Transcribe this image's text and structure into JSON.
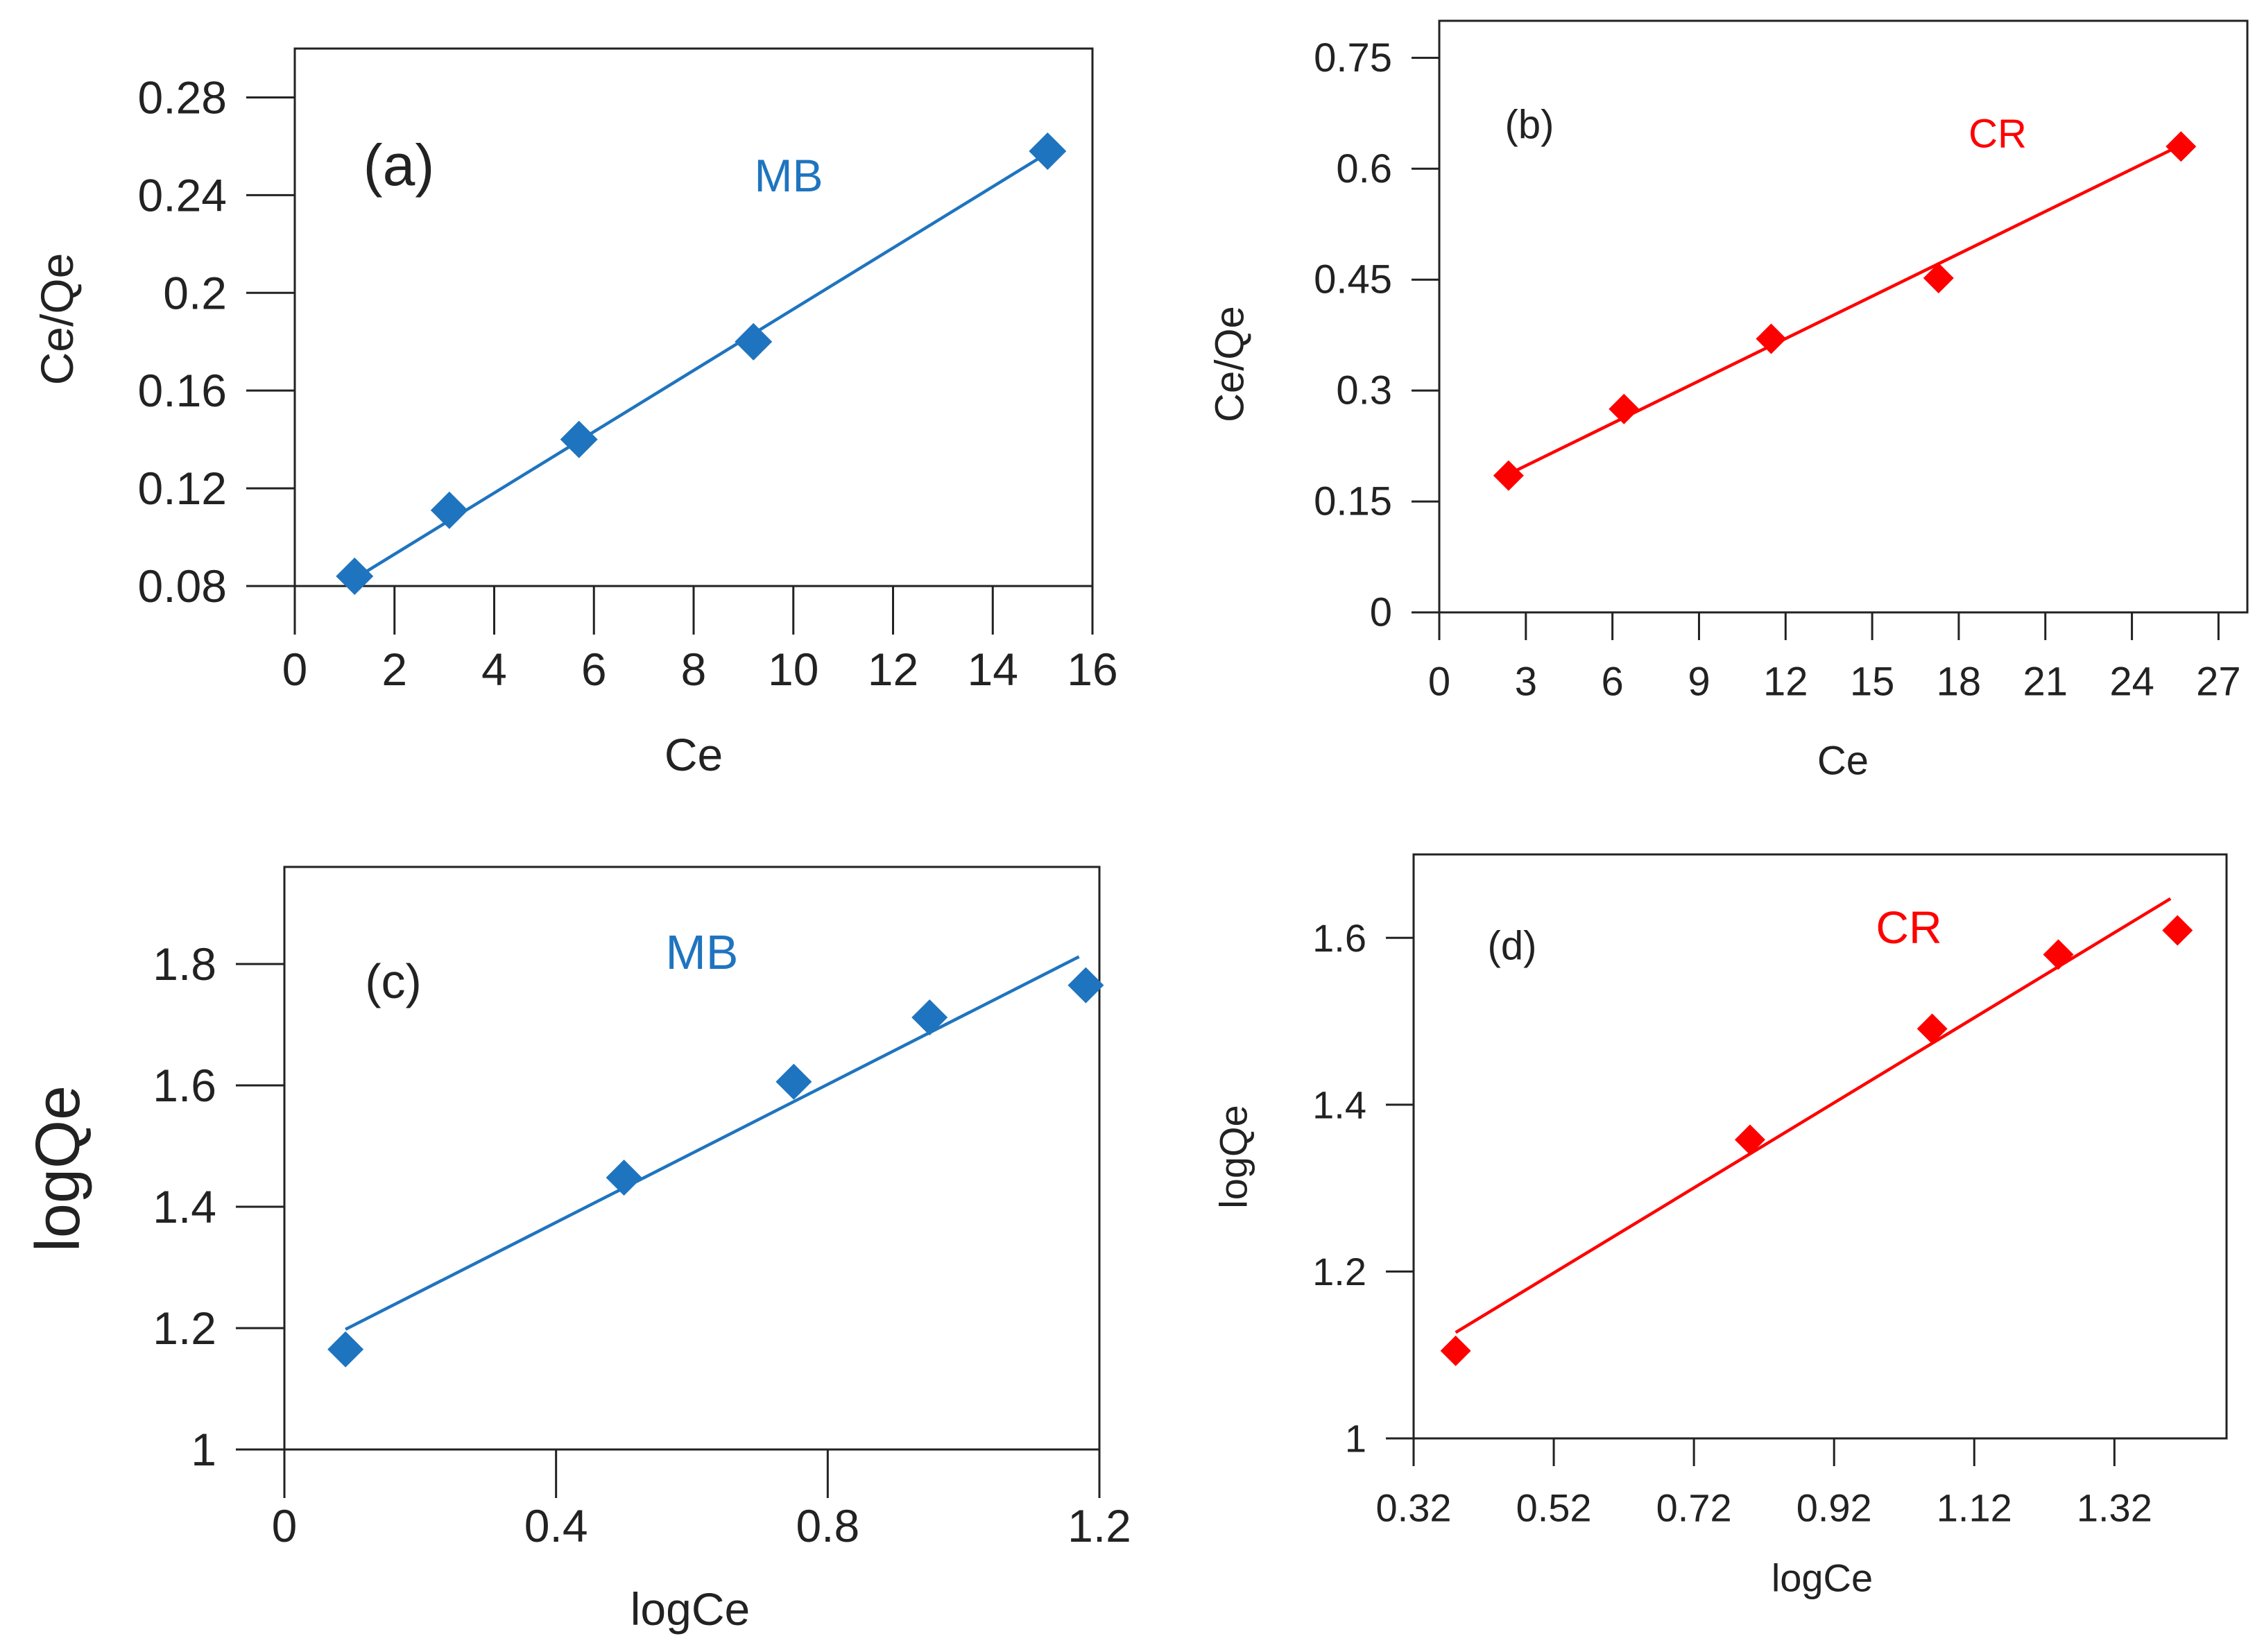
{
  "colors": {
    "mb": "#1f74bf",
    "cr": "#ff0000",
    "axis": "#222222"
  },
  "chart_data": [
    {
      "type": "scatter",
      "panel_label": "(a)",
      "series_label": "MB",
      "color": "#1f74bf",
      "marker": "diamond",
      "xlabel": "Ce",
      "ylabel": "Ce/Qe",
      "xlim": [
        0,
        16
      ],
      "ylim": [
        0.08,
        0.3
      ],
      "xticks": [
        "0",
        "2",
        "4",
        "6",
        "8",
        "10",
        "12",
        "14",
        "16"
      ],
      "yticks": [
        "0.08",
        "0.12",
        "0.16",
        "0.2",
        "0.24",
        "0.28"
      ],
      "x": [
        1.2,
        3.1,
        5.7,
        9.2,
        15.1
      ],
      "y": [
        0.084,
        0.111,
        0.14,
        0.18,
        0.258
      ],
      "trendline": {
        "x": [
          1.2,
          15.0
        ],
        "y": [
          0.083,
          0.256
        ]
      }
    },
    {
      "type": "scatter",
      "panel_label": "(b)",
      "series_label": "CR",
      "color": "#ff0000",
      "marker": "diamond",
      "xlabel": "Ce",
      "ylabel": "Ce/Qe",
      "xlim": [
        0,
        28
      ],
      "ylim": [
        0,
        0.8
      ],
      "xticks": [
        "0",
        "3",
        "6",
        "9",
        "12",
        "15",
        "18",
        "21",
        "24",
        "27"
      ],
      "yticks": [
        "0",
        "0.15",
        "0.3",
        "0.45",
        "0.6",
        "0.75"
      ],
      "x": [
        2.4,
        6.4,
        11.5,
        17.3,
        25.7
      ],
      "y": [
        0.185,
        0.275,
        0.37,
        0.452,
        0.63
      ],
      "trendline": {
        "x": [
          2.3,
          25.6
        ],
        "y": [
          0.185,
          0.63
        ]
      }
    },
    {
      "type": "scatter",
      "panel_label": "(c)",
      "series_label": "MB",
      "color": "#1f74bf",
      "marker": "diamond",
      "xlabel": "logCe",
      "ylabel": "logQe",
      "xlim": [
        0,
        1.2
      ],
      "ylim": [
        1,
        1.96
      ],
      "xticks": [
        "0",
        "0.4",
        "0.8",
        "1.2"
      ],
      "yticks": [
        "1",
        "1.2",
        "1.4",
        "1.6",
        "1.8"
      ],
      "x": [
        0.09,
        0.5,
        0.75,
        0.95,
        1.18
      ],
      "y": [
        1.165,
        1.448,
        1.606,
        1.712,
        1.765
      ],
      "trendline": {
        "x": [
          0.09,
          1.17
        ],
        "y": [
          1.198,
          1.812
        ]
      }
    },
    {
      "type": "scatter",
      "panel_label": "(d)",
      "series_label": "CR",
      "color": "#ff0000",
      "marker": "diamond",
      "xlabel": "logCe",
      "ylabel": "logQe",
      "xlim": [
        0.32,
        1.48
      ],
      "ylim": [
        1,
        1.7
      ],
      "xticks": [
        "0.32",
        "0.52",
        "0.72",
        "0.92",
        "1.12",
        "1.32"
      ],
      "yticks": [
        "1",
        "1.2",
        "1.4",
        "1.6"
      ],
      "x": [
        0.38,
        0.8,
        1.06,
        1.24,
        1.41
      ],
      "y": [
        1.105,
        1.358,
        1.491,
        1.58,
        1.609
      ],
      "trendline": {
        "x": [
          0.38,
          1.4
        ],
        "y": [
          1.127,
          1.647
        ]
      }
    }
  ]
}
